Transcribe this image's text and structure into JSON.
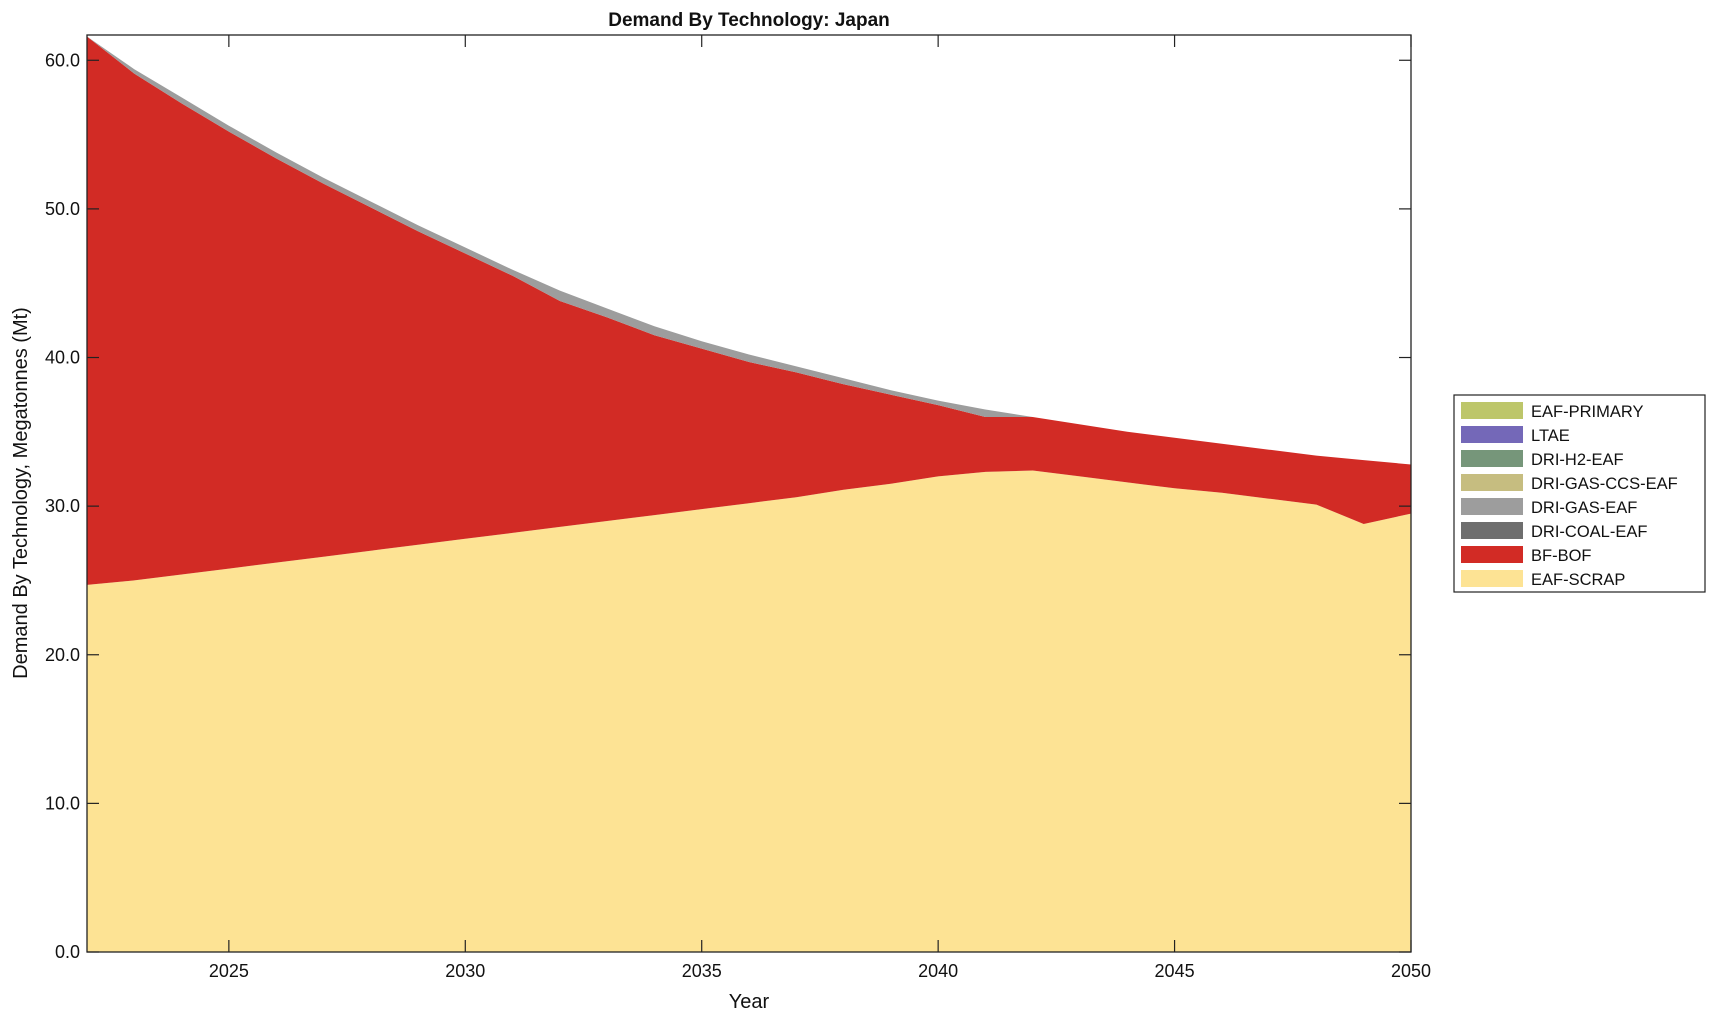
{
  "chart_data": {
    "type": "area",
    "stacked": true,
    "title": "Demand By Technology: Japan",
    "xlabel": "Year",
    "ylabel": "Demand By Technology, Megatonnes (Mt)",
    "xlim": [
      2022,
      2050
    ],
    "ylim": [
      0,
      61.7
    ],
    "xticks": [
      2025,
      2030,
      2035,
      2040,
      2045,
      2050
    ],
    "yticks": [
      0,
      10,
      20,
      30,
      40,
      50,
      60
    ],
    "ytick_labels": [
      "0.0",
      "10.0",
      "20.0",
      "30.0",
      "40.0",
      "50.0",
      "60.0"
    ],
    "grid": false,
    "legend_position": "right",
    "x": [
      2022,
      2023,
      2024,
      2025,
      2026,
      2027,
      2028,
      2029,
      2030,
      2031,
      2032,
      2033,
      2034,
      2035,
      2036,
      2037,
      2038,
      2039,
      2040,
      2041,
      2042,
      2043,
      2044,
      2045,
      2046,
      2047,
      2048,
      2049,
      2050
    ],
    "series": [
      {
        "name": "EAF-SCRAP",
        "color": "#fde394",
        "values": [
          24.7,
          25.0,
          25.4,
          25.8,
          26.2,
          26.6,
          27.0,
          27.4,
          27.8,
          28.2,
          28.6,
          29.0,
          29.4,
          29.8,
          30.2,
          30.6,
          31.1,
          31.5,
          32.0,
          32.3,
          32.4,
          32.0,
          31.6,
          31.2,
          30.9,
          30.5,
          30.1,
          28.8,
          29.5
        ]
      },
      {
        "name": "BF-BOF",
        "color": "#d22b25",
        "values": [
          36.9,
          34.1,
          31.7,
          29.4,
          27.2,
          25.1,
          23.1,
          21.1,
          19.2,
          17.3,
          15.2,
          13.7,
          12.1,
          10.8,
          9.5,
          8.4,
          7.1,
          6.0,
          4.8,
          3.7,
          3.6,
          3.5,
          3.4,
          3.4,
          3.3,
          3.3,
          3.3,
          4.3,
          3.3
        ]
      },
      {
        "name": "DRI-COAL-EAF",
        "color": "#6e6e6e",
        "values": [
          0,
          0,
          0,
          0,
          0,
          0,
          0,
          0,
          0,
          0,
          0,
          0,
          0,
          0,
          0,
          0,
          0,
          0,
          0,
          0,
          0,
          0,
          0,
          0,
          0,
          0,
          0,
          0,
          0
        ]
      },
      {
        "name": "DRI-GAS-EAF",
        "color": "#9d9d9d",
        "values": [
          0,
          0.3,
          0.4,
          0.4,
          0.4,
          0.4,
          0.4,
          0.4,
          0.4,
          0.4,
          0.7,
          0.6,
          0.6,
          0.5,
          0.5,
          0.4,
          0.4,
          0.3,
          0.3,
          0.5,
          0,
          0,
          0,
          0,
          0,
          0,
          0,
          0,
          0
        ]
      },
      {
        "name": "DRI-GAS-CCS-EAF",
        "color": "#c6bd80",
        "values": [
          0,
          0,
          0,
          0,
          0,
          0,
          0,
          0,
          0,
          0,
          0,
          0,
          0,
          0,
          0,
          0,
          0,
          0,
          0,
          0,
          0,
          0,
          0,
          0,
          0,
          0,
          0,
          0,
          0
        ]
      },
      {
        "name": "DRI-H2-EAF",
        "color": "#76967a",
        "values": [
          0,
          0,
          0,
          0,
          0,
          0,
          0,
          0,
          0,
          0,
          0,
          0,
          0,
          0,
          0,
          0,
          0,
          0,
          0,
          0,
          0,
          0,
          0,
          0,
          0,
          0,
          0,
          0,
          0
        ]
      },
      {
        "name": "LTAE",
        "color": "#7468b8",
        "values": [
          0,
          0,
          0,
          0,
          0,
          0,
          0,
          0,
          0,
          0,
          0,
          0,
          0,
          0,
          0,
          0,
          0,
          0,
          0,
          0,
          0,
          0,
          0,
          0,
          0,
          0,
          0,
          0,
          0
        ]
      },
      {
        "name": "EAF-PRIMARY",
        "color": "#bdc66a",
        "values": [
          0,
          0,
          0,
          0,
          0,
          0,
          0,
          0,
          0,
          0,
          0,
          0,
          0,
          0,
          0,
          0,
          0,
          0,
          0,
          0,
          0,
          0,
          0,
          0,
          0,
          0,
          0,
          0,
          0
        ]
      }
    ],
    "legend_order": [
      "EAF-PRIMARY",
      "LTAE",
      "DRI-H2-EAF",
      "DRI-GAS-CCS-EAF",
      "DRI-GAS-EAF",
      "DRI-COAL-EAF",
      "BF-BOF",
      "EAF-SCRAP"
    ]
  }
}
